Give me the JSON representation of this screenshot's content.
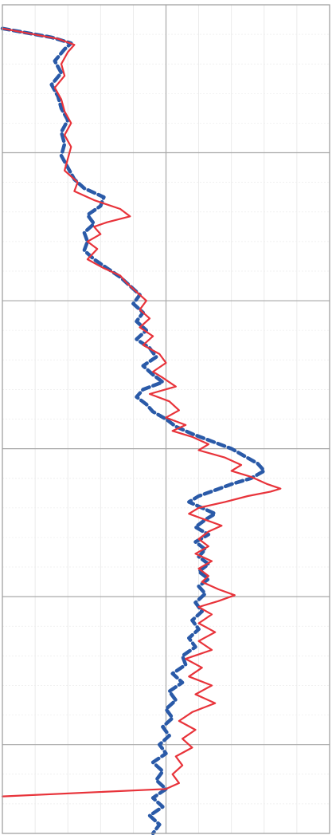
{
  "chart_data": {
    "type": "line",
    "orientation": "vertical-profile",
    "title": "",
    "xlabel": "",
    "ylabel": "",
    "grid": true,
    "legend": "none",
    "xlim": [
      0,
      10
    ],
    "ylim": [
      0,
      5.6
    ],
    "y_inverted": true,
    "series": [
      {
        "color": "#e8333a",
        "line_style": "solid",
        "points": [
          [
            0.0,
            0.16
          ],
          [
            1.7,
            0.23
          ],
          [
            2.2,
            0.27
          ],
          [
            2.0,
            0.32
          ],
          [
            1.8,
            0.4
          ],
          [
            1.9,
            0.48
          ],
          [
            1.6,
            0.56
          ],
          [
            1.8,
            0.64
          ],
          [
            1.9,
            0.72
          ],
          [
            2.1,
            0.8
          ],
          [
            1.9,
            0.88
          ],
          [
            2.1,
            0.96
          ],
          [
            2.0,
            1.04
          ],
          [
            1.9,
            1.12
          ],
          [
            2.3,
            1.2
          ],
          [
            2.2,
            1.26
          ],
          [
            2.8,
            1.32
          ],
          [
            3.6,
            1.38
          ],
          [
            3.9,
            1.43
          ],
          [
            3.2,
            1.47
          ],
          [
            2.8,
            1.5
          ],
          [
            3.0,
            1.55
          ],
          [
            2.6,
            1.6
          ],
          [
            2.9,
            1.65
          ],
          [
            2.6,
            1.72
          ],
          [
            3.1,
            1.78
          ],
          [
            3.6,
            1.83
          ],
          [
            3.8,
            1.88
          ],
          [
            4.1,
            1.94
          ],
          [
            4.4,
            2.0
          ],
          [
            4.2,
            2.06
          ],
          [
            4.5,
            2.12
          ],
          [
            4.2,
            2.18
          ],
          [
            4.6,
            2.24
          ],
          [
            4.3,
            2.3
          ],
          [
            4.8,
            2.36
          ],
          [
            5.0,
            2.42
          ],
          [
            4.6,
            2.48
          ],
          [
            4.9,
            2.52
          ],
          [
            5.3,
            2.58
          ],
          [
            4.5,
            2.63
          ],
          [
            5.1,
            2.68
          ],
          [
            5.4,
            2.74
          ],
          [
            5.0,
            2.79
          ],
          [
            5.6,
            2.84
          ],
          [
            5.2,
            2.88
          ],
          [
            5.8,
            2.92
          ],
          [
            6.3,
            2.97
          ],
          [
            6.0,
            3.01
          ],
          [
            6.8,
            3.06
          ],
          [
            7.3,
            3.11
          ],
          [
            7.0,
            3.15
          ],
          [
            7.6,
            3.19
          ],
          [
            8.1,
            3.24
          ],
          [
            8.5,
            3.27
          ],
          [
            8.2,
            3.29
          ],
          [
            7.5,
            3.32
          ],
          [
            6.8,
            3.36
          ],
          [
            6.0,
            3.4
          ],
          [
            5.7,
            3.44
          ],
          [
            6.2,
            3.48
          ],
          [
            6.7,
            3.52
          ],
          [
            6.3,
            3.56
          ],
          [
            6.0,
            3.61
          ],
          [
            6.3,
            3.66
          ],
          [
            5.9,
            3.71
          ],
          [
            6.4,
            3.76
          ],
          [
            6.0,
            3.81
          ],
          [
            6.3,
            3.86
          ],
          [
            6.1,
            3.9
          ],
          [
            6.6,
            3.95
          ],
          [
            7.1,
            3.99
          ],
          [
            6.6,
            4.03
          ],
          [
            6.0,
            4.07
          ],
          [
            6.4,
            4.12
          ],
          [
            6.0,
            4.18
          ],
          [
            6.5,
            4.24
          ],
          [
            6.0,
            4.3
          ],
          [
            6.4,
            4.36
          ],
          [
            5.6,
            4.42
          ],
          [
            6.1,
            4.48
          ],
          [
            5.7,
            4.54
          ],
          [
            6.4,
            4.6
          ],
          [
            5.9,
            4.66
          ],
          [
            6.5,
            4.72
          ],
          [
            5.8,
            4.78
          ],
          [
            5.4,
            4.84
          ],
          [
            5.9,
            4.9
          ],
          [
            5.5,
            4.96
          ],
          [
            5.8,
            5.02
          ],
          [
            5.3,
            5.08
          ],
          [
            5.5,
            5.14
          ],
          [
            5.2,
            5.2
          ],
          [
            5.4,
            5.26
          ],
          [
            5.0,
            5.3
          ],
          [
            0.0,
            5.35
          ]
        ]
      },
      {
        "color": "#2a5aa8",
        "line_style": "dashed",
        "points": [
          [
            0.0,
            0.16
          ],
          [
            1.5,
            0.22
          ],
          [
            2.1,
            0.26
          ],
          [
            1.9,
            0.3
          ],
          [
            1.6,
            0.38
          ],
          [
            1.8,
            0.46
          ],
          [
            1.5,
            0.54
          ],
          [
            1.7,
            0.62
          ],
          [
            1.8,
            0.7
          ],
          [
            2.0,
            0.78
          ],
          [
            1.8,
            0.86
          ],
          [
            1.9,
            0.94
          ],
          [
            1.8,
            1.02
          ],
          [
            2.0,
            1.1
          ],
          [
            2.2,
            1.18
          ],
          [
            2.5,
            1.24
          ],
          [
            3.1,
            1.3
          ],
          [
            3.0,
            1.36
          ],
          [
            2.6,
            1.42
          ],
          [
            2.8,
            1.48
          ],
          [
            2.5,
            1.54
          ],
          [
            2.6,
            1.6
          ],
          [
            2.5,
            1.66
          ],
          [
            2.8,
            1.72
          ],
          [
            3.2,
            1.78
          ],
          [
            3.6,
            1.84
          ],
          [
            3.9,
            1.9
          ],
          [
            4.2,
            1.96
          ],
          [
            4.0,
            2.02
          ],
          [
            4.3,
            2.08
          ],
          [
            4.1,
            2.14
          ],
          [
            4.4,
            2.2
          ],
          [
            4.1,
            2.26
          ],
          [
            4.5,
            2.32
          ],
          [
            4.7,
            2.38
          ],
          [
            4.3,
            2.44
          ],
          [
            4.6,
            2.5
          ],
          [
            4.9,
            2.55
          ],
          [
            4.3,
            2.6
          ],
          [
            4.1,
            2.65
          ],
          [
            4.4,
            2.7
          ],
          [
            4.6,
            2.75
          ],
          [
            5.0,
            2.8
          ],
          [
            5.3,
            2.85
          ],
          [
            5.8,
            2.9
          ],
          [
            6.4,
            2.95
          ],
          [
            7.0,
            3.0
          ],
          [
            7.4,
            3.05
          ],
          [
            7.8,
            3.1
          ],
          [
            8.0,
            3.15
          ],
          [
            7.6,
            3.2
          ],
          [
            7.0,
            3.24
          ],
          [
            6.5,
            3.28
          ],
          [
            6.0,
            3.32
          ],
          [
            5.7,
            3.36
          ],
          [
            6.1,
            3.4
          ],
          [
            6.5,
            3.44
          ],
          [
            6.2,
            3.48
          ],
          [
            5.9,
            3.53
          ],
          [
            6.3,
            3.58
          ],
          [
            5.9,
            3.63
          ],
          [
            6.2,
            3.68
          ],
          [
            6.0,
            3.73
          ],
          [
            6.3,
            3.78
          ],
          [
            6.0,
            3.83
          ],
          [
            6.3,
            3.88
          ],
          [
            6.0,
            3.93
          ],
          [
            6.2,
            3.98
          ],
          [
            5.9,
            4.04
          ],
          [
            6.1,
            4.1
          ],
          [
            5.8,
            4.16
          ],
          [
            6.0,
            4.22
          ],
          [
            5.7,
            4.28
          ],
          [
            5.9,
            4.34
          ],
          [
            5.5,
            4.4
          ],
          [
            5.6,
            4.46
          ],
          [
            5.2,
            4.52
          ],
          [
            5.5,
            4.58
          ],
          [
            5.1,
            4.64
          ],
          [
            5.3,
            4.7
          ],
          [
            5.0,
            4.76
          ],
          [
            5.2,
            4.82
          ],
          [
            4.9,
            4.88
          ],
          [
            5.1,
            4.94
          ],
          [
            4.8,
            5.0
          ],
          [
            5.0,
            5.06
          ],
          [
            4.6,
            5.12
          ],
          [
            4.9,
            5.18
          ],
          [
            4.7,
            5.24
          ],
          [
            5.0,
            5.3
          ],
          [
            4.6,
            5.36
          ],
          [
            4.9,
            5.42
          ],
          [
            4.5,
            5.48
          ],
          [
            4.8,
            5.54
          ],
          [
            4.6,
            5.6
          ]
        ]
      }
    ]
  }
}
